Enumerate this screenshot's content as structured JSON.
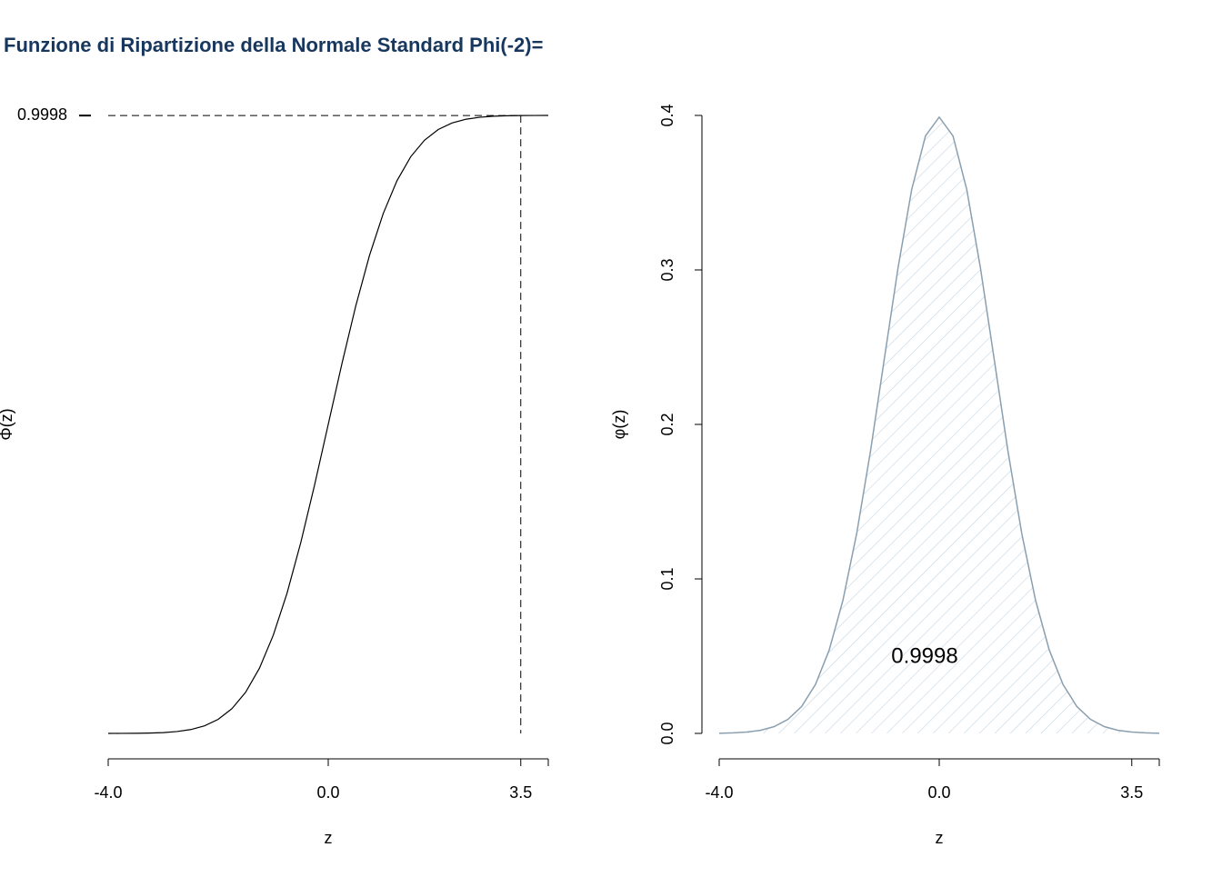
{
  "title": "Funzione di Ripartizione della Normale Standard Phi(-2)=",
  "chart_data": [
    {
      "type": "line",
      "x_label": "z",
      "y_label": "Φ(z)",
      "color": "#000000",
      "x": [
        -4,
        -3.75,
        -3.5,
        -3.25,
        -3,
        -2.75,
        -2.5,
        -2.25,
        -2,
        -1.75,
        -1.5,
        -1.25,
        -1,
        -0.75,
        -0.5,
        -0.25,
        0,
        0.25,
        0.5,
        0.75,
        1,
        1.25,
        1.5,
        1.75,
        2,
        2.25,
        2.5,
        2.75,
        3,
        3.25,
        3.5,
        3.75,
        4
      ],
      "values": [
        0.0,
        0.0001,
        0.0002,
        0.0006,
        0.0013,
        0.003,
        0.0062,
        0.0122,
        0.0228,
        0.0401,
        0.0668,
        0.1056,
        0.1587,
        0.2266,
        0.3085,
        0.4013,
        0.5,
        0.5987,
        0.6915,
        0.7734,
        0.8413,
        0.8944,
        0.9332,
        0.9599,
        0.9772,
        0.9878,
        0.9938,
        0.997,
        0.9987,
        0.9994,
        0.9998,
        0.9999,
        1.0
      ],
      "xlim": [
        -4,
        4
      ],
      "ylim": [
        0,
        1
      ],
      "xticks": [
        {
          "value": -4,
          "label": "-4.0"
        },
        {
          "value": 0,
          "label": "0.0"
        },
        3.5
      ],
      "yticks": [
        0.9998
      ],
      "cutoff_x": 3.5,
      "cutoff_y": 0.9998
    },
    {
      "type": "area",
      "x_label": "z",
      "y_label": "φ(z)",
      "color": "#8a9fb0",
      "fill_color": "#c5d5e2",
      "x": [
        -4,
        -3.75,
        -3.5,
        -3.25,
        -3,
        -2.75,
        -2.5,
        -2.25,
        -2,
        -1.75,
        -1.5,
        -1.25,
        -1,
        -0.75,
        -0.5,
        -0.25,
        0,
        0.25,
        0.5,
        0.75,
        1,
        1.25,
        1.5,
        1.75,
        2,
        2.25,
        2.5,
        2.75,
        3,
        3.25,
        3.5,
        3.75,
        4
      ],
      "values": [
        0.0001,
        0.0004,
        0.0009,
        0.002,
        0.0044,
        0.0091,
        0.0175,
        0.0317,
        0.054,
        0.0863,
        0.1295,
        0.1826,
        0.242,
        0.3011,
        0.3521,
        0.3867,
        0.3989,
        0.3867,
        0.3521,
        0.3011,
        0.242,
        0.1826,
        0.1295,
        0.0863,
        0.054,
        0.0317,
        0.0175,
        0.0091,
        0.0044,
        0.002,
        0.0009,
        0.0004,
        0.0001
      ],
      "xlim": [
        -4,
        4
      ],
      "ylim": [
        0,
        0.4
      ],
      "xticks": [
        {
          "value": -4,
          "label": "-4.0"
        },
        {
          "value": 0,
          "label": "0.0"
        },
        3.5
      ],
      "yticks": [
        {
          "value": 0,
          "label": "0.0"
        },
        0.1,
        0.2,
        0.3,
        0.4
      ],
      "shade_to": 3.5,
      "annotation": "0.9998"
    }
  ]
}
